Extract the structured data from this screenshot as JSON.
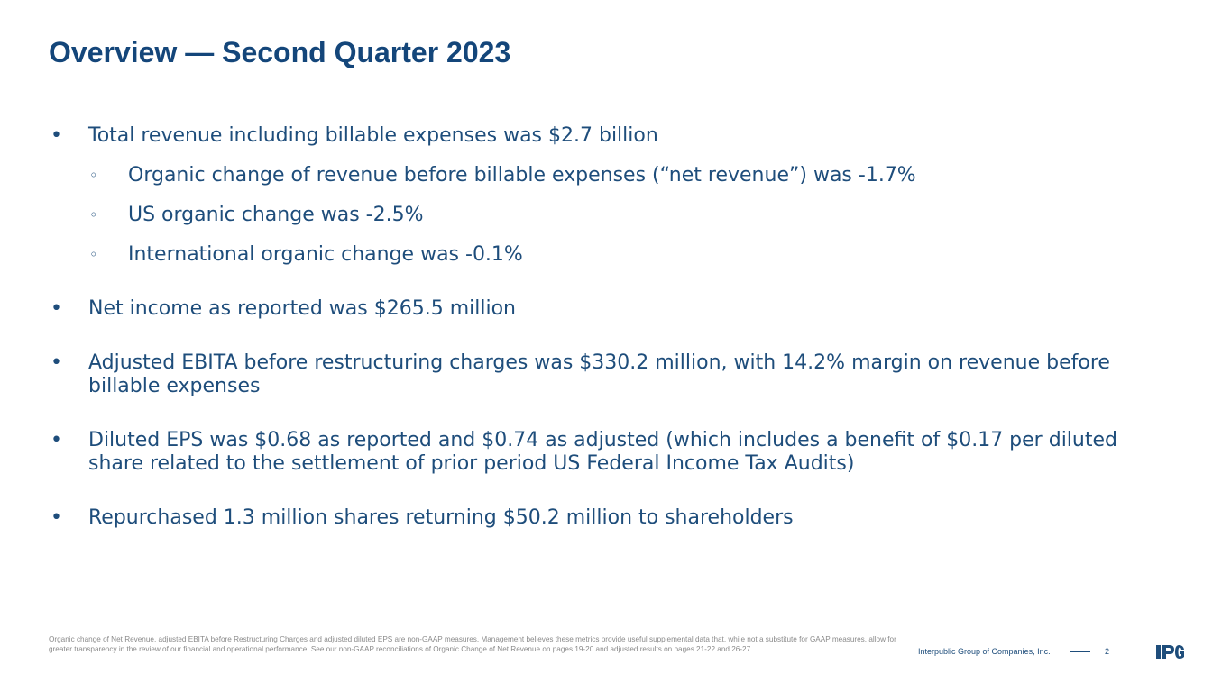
{
  "slide": {
    "title": "Overview — Second Quarter 2023",
    "bullet_marker": "•",
    "sub_marker": "◦",
    "bullets": [
      {
        "text": "Total revenue including billable expenses was $2.7 billion",
        "subs": [
          "Organic change of revenue before billable expenses (“net revenue”) was -1.7%",
          "US organic change was -2.5%",
          "International organic change was -0.1%"
        ]
      },
      {
        "text": "Net income as reported was $265.5 million"
      },
      {
        "text": "Adjusted EBITA before restructuring charges was $330.2 million, with 14.2% margin on revenue before billable expenses"
      },
      {
        "text": "Diluted EPS was $0.68 as reported and $0.74 as adjusted (which includes a benefit of $0.17 per diluted share related to the settlement of prior period US Federal Income Tax Audits)"
      },
      {
        "text": "Repurchased 1.3 million shares returning $50.2 million to shareholders"
      }
    ]
  },
  "footer": {
    "footnote": "Organic change of Net Revenue, adjusted EBITA before Restructuring Charges and adjusted diluted EPS are non-GAAP measures. Management believes these metrics provide useful supplemental data that, while not a substitute for GAAP measures, allow for greater transparency in the review of our financial and operational performance. See our non-GAAP reconciliations of Organic Change of Net Revenue on pages 19-20 and adjusted results on pages 21-22 and 26-27.",
    "company": "Interpublic Group of Companies, Inc.",
    "page_number": "2",
    "logo_text": "IPG"
  },
  "colors": {
    "title": "#14467a",
    "body": "#1e4d7b",
    "footnote": "#8a8a8a",
    "logo": "#1e4d7b"
  }
}
